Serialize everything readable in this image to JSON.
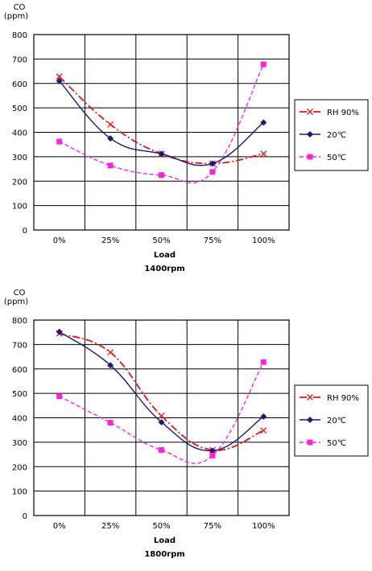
{
  "chart_data": [
    {
      "type": "line",
      "ylabel": "CO\n(ppm)",
      "xlabel": "Load",
      "caption": "1400rpm",
      "categories": [
        "0%",
        "25%",
        "50%",
        "75%",
        "100%"
      ],
      "ylim": [
        0,
        800
      ],
      "yticks": [
        0,
        100,
        200,
        300,
        400,
        500,
        600,
        700,
        800
      ],
      "grid": true,
      "legend_position": "right",
      "series": [
        {
          "name": "RH 90%",
          "values": [
            628,
            432,
            312,
            272,
            312
          ],
          "color": "#ee1111",
          "marker": "x"
        },
        {
          "name": "20℃",
          "values": [
            610,
            375,
            312,
            272,
            440
          ],
          "color": "#1a1a7a",
          "marker": "diamond"
        },
        {
          "name": "50℃",
          "values": [
            362,
            264,
            225,
            238,
            678
          ],
          "color": "#ff22dd",
          "marker": "square"
        }
      ]
    },
    {
      "type": "line",
      "ylabel": "CO\n(ppm)",
      "xlabel": "Load",
      "caption": "1800rpm",
      "categories": [
        "0%",
        "25%",
        "50%",
        "75%",
        "100%"
      ],
      "ylim": [
        0,
        800
      ],
      "yticks": [
        0,
        100,
        200,
        300,
        400,
        500,
        600,
        700,
        800
      ],
      "grid": true,
      "legend_position": "right",
      "series": [
        {
          "name": "RH 90%",
          "values": [
            745,
            668,
            408,
            268,
            348
          ],
          "color": "#ee1111",
          "marker": "x"
        },
        {
          "name": "20℃",
          "values": [
            752,
            615,
            382,
            265,
            405
          ],
          "color": "#1a1a7a",
          "marker": "diamond"
        },
        {
          "name": "50℃",
          "values": [
            488,
            380,
            268,
            245,
            628
          ],
          "color": "#ff22dd",
          "marker": "square"
        }
      ]
    }
  ]
}
